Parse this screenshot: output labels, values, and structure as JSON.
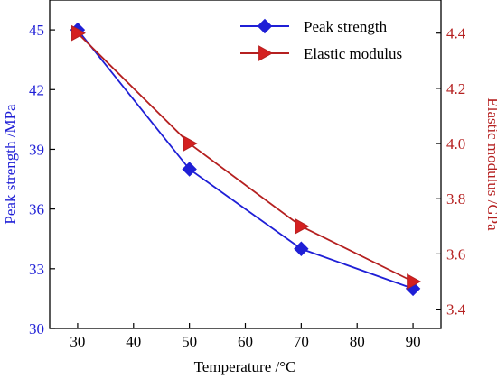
{
  "colors": {
    "left_series": "#1f1fd6",
    "right_series": "#b52020",
    "right_marker": "#d42020",
    "axis": "#000000"
  },
  "chart_data": {
    "type": "line",
    "xlabel": "Temperature /°C",
    "xlim": [
      25,
      95
    ],
    "x_ticks": [
      30,
      40,
      50,
      60,
      70,
      80,
      90
    ],
    "y_left": {
      "label": "Peak strength /MPa",
      "lim": [
        30,
        46.5
      ],
      "ticks": [
        30,
        33,
        36,
        39,
        42,
        45
      ]
    },
    "y_right": {
      "label": "Elastic modulus /GPa",
      "lim": [
        3.33,
        4.52
      ],
      "ticks": [
        "3.4",
        "3.6",
        "3.8",
        "4.0",
        "4.2",
        "4.4"
      ]
    },
    "legend_position": "top-right",
    "series": [
      {
        "name": "Peak strength",
        "axis": "left",
        "marker": "diamond",
        "x": [
          30,
          50,
          70,
          90
        ],
        "values": [
          45,
          38,
          34,
          32
        ]
      },
      {
        "name": "Elastic modulus",
        "axis": "right",
        "marker": "triangle-right",
        "x": [
          30,
          50,
          70,
          90
        ],
        "values": [
          4.4,
          4.0,
          3.7,
          3.5
        ]
      }
    ]
  }
}
